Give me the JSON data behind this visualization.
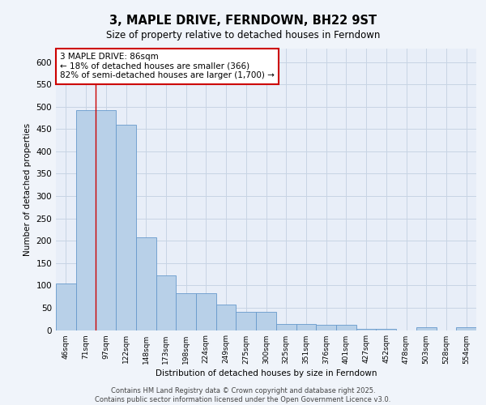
{
  "title_line1": "3, MAPLE DRIVE, FERNDOWN, BH22 9ST",
  "title_line2": "Size of property relative to detached houses in Ferndown",
  "xlabel": "Distribution of detached houses by size in Ferndown",
  "ylabel": "Number of detached properties",
  "categories": [
    "46sqm",
    "71sqm",
    "97sqm",
    "122sqm",
    "148sqm",
    "173sqm",
    "198sqm",
    "224sqm",
    "249sqm",
    "275sqm",
    "300sqm",
    "325sqm",
    "351sqm",
    "376sqm",
    "401sqm",
    "427sqm",
    "452sqm",
    "478sqm",
    "503sqm",
    "528sqm",
    "554sqm"
  ],
  "values": [
    105,
    493,
    493,
    460,
    207,
    122,
    82,
    82,
    57,
    40,
    40,
    14,
    14,
    11,
    11,
    3,
    3,
    0,
    6,
    0,
    6
  ],
  "bar_color": "#b8d0e8",
  "bar_edge_color": "#6699cc",
  "grid_color": "#c8d4e4",
  "background_color": "#e8eef8",
  "red_line_x": 1.5,
  "annotation_text": "3 MAPLE DRIVE: 86sqm\n← 18% of detached houses are smaller (366)\n82% of semi-detached houses are larger (1,700) →",
  "annotation_box_color": "#ffffff",
  "annotation_box_edge": "#cc0000",
  "footer_text": "Contains HM Land Registry data © Crown copyright and database right 2025.\nContains public sector information licensed under the Open Government Licence v3.0.",
  "ylim": [
    0,
    630
  ],
  "yticks": [
    0,
    50,
    100,
    150,
    200,
    250,
    300,
    350,
    400,
    450,
    500,
    550,
    600
  ],
  "fig_bg": "#f0f4fa"
}
